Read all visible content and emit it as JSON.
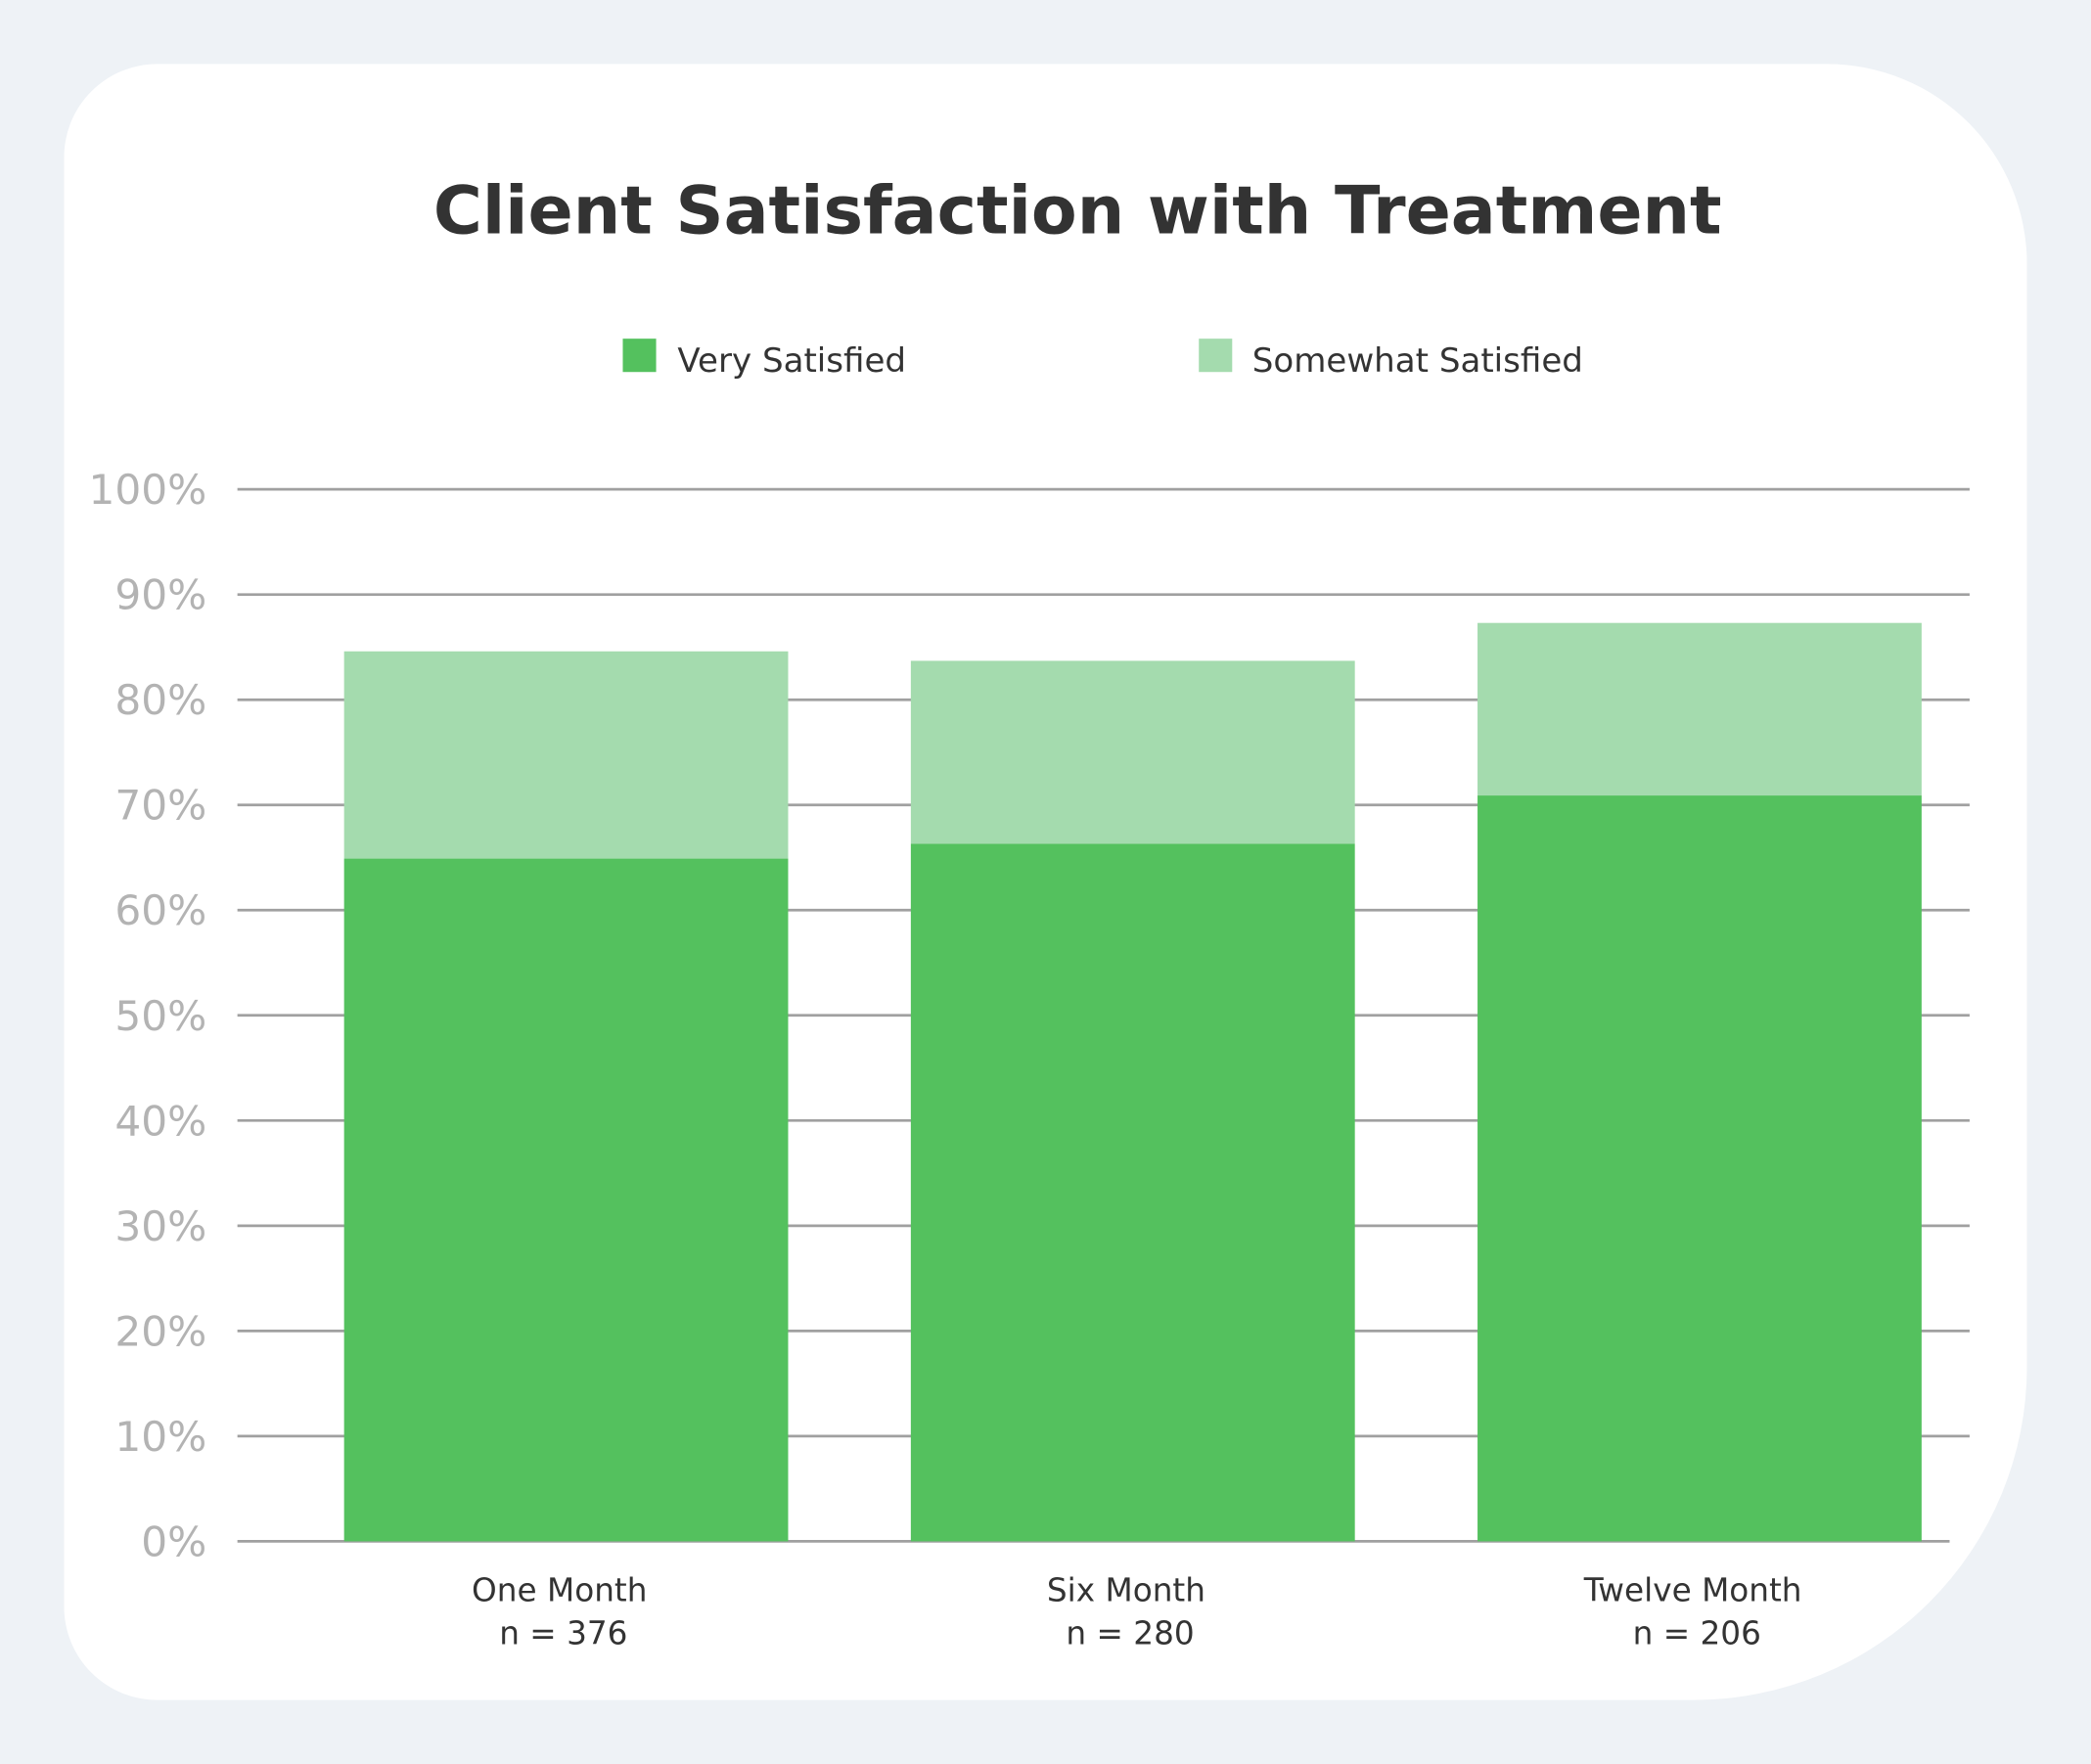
{
  "chart_data": {
    "type": "bar",
    "stacked": true,
    "title": "Client Satisfaction with Treatment",
    "categories": [
      "One Month",
      "Six Month",
      "Twelve Month"
    ],
    "category_sublabels": [
      "n = 376",
      "n = 280",
      "n = 206"
    ],
    "series": [
      {
        "name": "Very Satisfied",
        "color": "#54c15e",
        "values": [
          64.9,
          66.3,
          70.9
        ]
      },
      {
        "name": "Somewhat Satisfied",
        "color": "#a4dbae",
        "values": [
          19.7,
          17.4,
          16.4
        ]
      }
    ],
    "ylim": [
      0,
      100
    ],
    "yticks": [
      "0%",
      "10%",
      "20%",
      "30%",
      "40%",
      "50%",
      "60%",
      "70%",
      "80%",
      "90%",
      "100%"
    ],
    "grid": true,
    "legend": "top-center",
    "xlabel": "",
    "ylabel": ""
  }
}
